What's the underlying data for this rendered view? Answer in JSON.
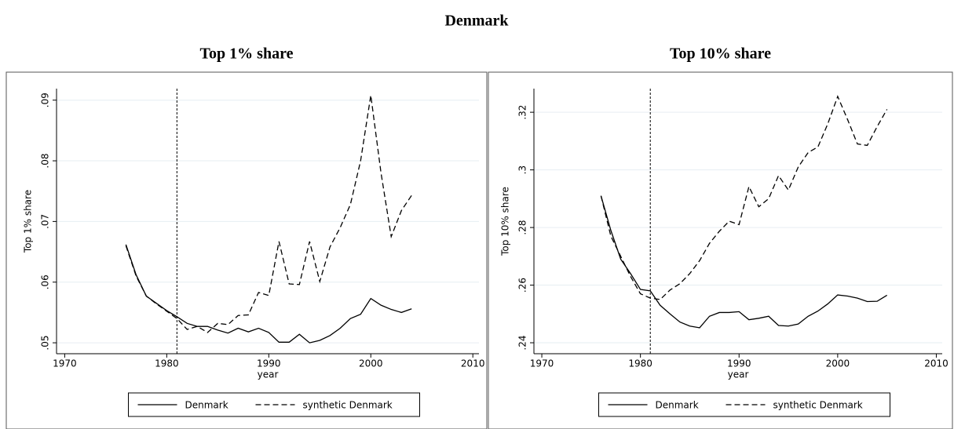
{
  "title": "Denmark",
  "chart_data": [
    {
      "type": "line",
      "title": "Top 1% share",
      "xlabel": "year",
      "ylabel": "Top 1% share",
      "x": [
        1976,
        1977,
        1978,
        1979,
        1980,
        1981,
        1982,
        1983,
        1984,
        1985,
        1986,
        1987,
        1988,
        1989,
        1990,
        1991,
        1992,
        1993,
        1994,
        1995,
        1996,
        1997,
        1998,
        1999,
        2000,
        2001,
        2002,
        2003,
        2004
      ],
      "series": [
        {
          "name": "Denmark",
          "color": "#000000",
          "dashed": false,
          "values": [
            0.0662,
            0.0612,
            0.0577,
            0.0565,
            0.0553,
            0.0543,
            0.0532,
            0.0527,
            0.0527,
            0.0521,
            0.0516,
            0.0524,
            0.0518,
            0.0524,
            0.0517,
            0.0501,
            0.0501,
            0.0514,
            0.05,
            0.0504,
            0.0512,
            0.0524,
            0.054,
            0.0547,
            0.0573,
            0.0562,
            0.0555,
            0.055,
            0.0556
          ]
        },
        {
          "name": "synthetic Denmark",
          "color": "#000000",
          "dashed": true,
          "values": [
            0.066,
            0.061,
            0.0577,
            0.0564,
            0.0552,
            0.054,
            0.0522,
            0.0527,
            0.0517,
            0.0532,
            0.053,
            0.0545,
            0.0546,
            0.0583,
            0.0578,
            0.0667,
            0.0597,
            0.0596,
            0.0667,
            0.0601,
            0.0658,
            0.069,
            0.0728,
            0.08,
            0.0908,
            0.078,
            0.0675,
            0.0718,
            0.0743
          ]
        }
      ],
      "vline": 1981,
      "xlim": [
        1969.2,
        2010.6
      ],
      "xticks": [
        1970,
        1980,
        1990,
        2000,
        2010
      ],
      "ylim": [
        0.0482,
        0.0919
      ],
      "yticks": [
        {
          "value": 0.05,
          "label": ".05"
        },
        {
          "value": 0.06,
          "label": ".06"
        },
        {
          "value": 0.07,
          "label": ".07"
        },
        {
          "value": 0.08,
          "label": ".08"
        },
        {
          "value": 0.09,
          "label": ".09"
        }
      ],
      "grid": true
    },
    {
      "type": "line",
      "title": "Top 10% share",
      "xlabel": "year",
      "ylabel": "Top 10% share",
      "x": [
        1976,
        1977,
        1978,
        1979,
        1980,
        1981,
        1982,
        1983,
        1984,
        1985,
        1986,
        1987,
        1988,
        1989,
        1990,
        1991,
        1992,
        1993,
        1994,
        1995,
        1996,
        1997,
        1998,
        1999,
        2000,
        2001,
        2002,
        2003,
        2004,
        2005
      ],
      "series": [
        {
          "name": "Denmark",
          "color": "#000000",
          "dashed": false,
          "values": [
            0.291,
            0.279,
            0.269,
            0.264,
            0.2585,
            0.258,
            0.253,
            0.25,
            0.2472,
            0.2458,
            0.2452,
            0.2492,
            0.2505,
            0.2505,
            0.2508,
            0.248,
            0.2485,
            0.2492,
            0.246,
            0.2458,
            0.2465,
            0.2492,
            0.251,
            0.2535,
            0.2566,
            0.2562,
            0.2555,
            0.2543,
            0.2544,
            0.2565
          ]
        },
        {
          "name": "synthetic Denmark",
          "color": "#000000",
          "dashed": true,
          "values": [
            0.291,
            0.277,
            0.27,
            0.263,
            0.257,
            0.2555,
            0.255,
            0.2583,
            0.2605,
            0.264,
            0.2685,
            0.2745,
            0.2787,
            0.2822,
            0.281,
            0.2942,
            0.2872,
            0.29,
            0.298,
            0.293,
            0.301,
            0.306,
            0.308,
            0.316,
            0.3255,
            0.3175,
            0.309,
            0.3085,
            0.315,
            0.321
          ]
        }
      ],
      "vline": 1981,
      "xlim": [
        1969.2,
        2010.6
      ],
      "xticks": [
        1970,
        1980,
        1990,
        2000,
        2010
      ],
      "ylim": [
        0.2362,
        0.3282
      ],
      "yticks": [
        {
          "value": 0.24,
          "label": ".24"
        },
        {
          "value": 0.26,
          "label": ".26"
        },
        {
          "value": 0.28,
          "label": ".28"
        },
        {
          "value": 0.3,
          "label": ".3"
        },
        {
          "value": 0.32,
          "label": ".32"
        }
      ],
      "grid": true
    }
  ]
}
